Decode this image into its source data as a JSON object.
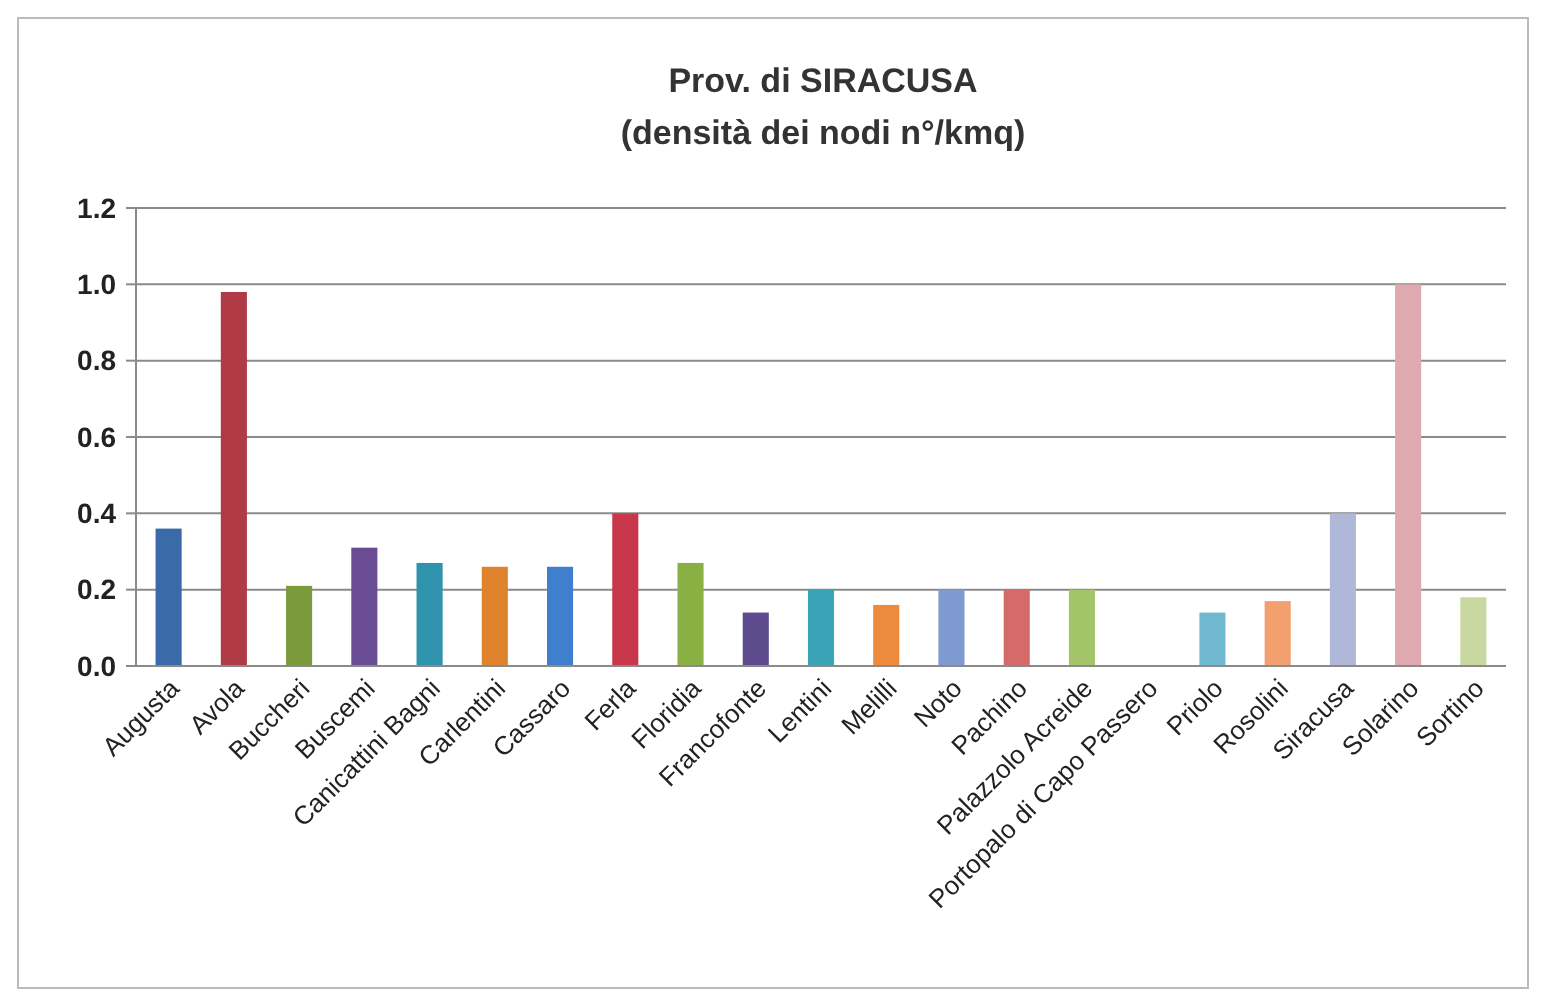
{
  "chart_data": {
    "type": "bar",
    "title": "Prov. di SIRACUSA",
    "subtitle": "(densità dei nodi n°/kmq)",
    "categories": [
      "Augusta",
      "Avola",
      "Buccheri",
      "Buscemi",
      "Canicattini Bagni",
      "Carlentini",
      "Cassaro",
      "Ferla",
      "Floridia",
      "Francofonte",
      "Lentini",
      "Melilli",
      "Noto",
      "Pachino",
      "Palazzolo Acreide",
      "Portopalo di Capo Passero",
      "Priolo",
      "Rosolini",
      "Siracusa",
      "Solarino",
      "Sortino"
    ],
    "values": [
      0.36,
      0.98,
      0.21,
      0.31,
      0.27,
      0.26,
      0.26,
      0.4,
      0.27,
      0.14,
      0.2,
      0.16,
      0.2,
      0.2,
      0.2,
      0,
      0.14,
      0.17,
      0.4,
      1.0,
      0.18
    ],
    "colors": [
      "#3b6aa8",
      "#b03a46",
      "#7a9a3c",
      "#6a4c94",
      "#2f93ad",
      "#e0832d",
      "#3f7fce",
      "#c9384a",
      "#8ab043",
      "#5e4b8e",
      "#3aa3b5",
      "#ee8a3c",
      "#7f9ad0",
      "#d56a6a",
      "#a3c469",
      "#cccccc",
      "#6fb8d0",
      "#f2a070",
      "#b0b8da",
      "#deaab0",
      "#c8d8a0"
    ],
    "ylim": [
      0,
      1.2
    ],
    "yticks": [
      {
        "value": 0,
        "label": "0.0"
      },
      {
        "value": 0.2,
        "label": "0.2"
      },
      {
        "value": 0.4,
        "label": "0.4"
      },
      {
        "value": 0.6,
        "label": "0.6"
      },
      {
        "value": 0.8,
        "label": "0.8"
      },
      {
        "value": 1,
        "label": "1.0"
      },
      {
        "value": 1.2,
        "label": "1.2"
      }
    ],
    "grid": "y"
  }
}
